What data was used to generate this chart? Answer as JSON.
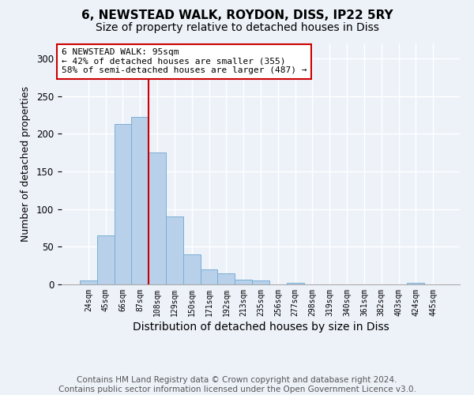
{
  "title": "6, NEWSTEAD WALK, ROYDON, DISS, IP22 5RY",
  "subtitle": "Size of property relative to detached houses in Diss",
  "xlabel": "Distribution of detached houses by size in Diss",
  "ylabel": "Number of detached properties",
  "bar_labels": [
    "24sqm",
    "45sqm",
    "66sqm",
    "87sqm",
    "108sqm",
    "129sqm",
    "150sqm",
    "171sqm",
    "192sqm",
    "213sqm",
    "235sqm",
    "256sqm",
    "277sqm",
    "298sqm",
    "319sqm",
    "340sqm",
    "361sqm",
    "382sqm",
    "403sqm",
    "424sqm",
    "445sqm"
  ],
  "bar_values": [
    5,
    65,
    213,
    222,
    175,
    90,
    40,
    20,
    15,
    6,
    5,
    0,
    2,
    0,
    0,
    0,
    0,
    0,
    0,
    2,
    0
  ],
  "bar_color": "#b8d0ea",
  "bar_edge_color": "#7aafd4",
  "vline_x": 3.5,
  "vline_color": "#cc0000",
  "annotation_text": "6 NEWSTEAD WALK: 95sqm\n← 42% of detached houses are smaller (355)\n58% of semi-detached houses are larger (487) →",
  "annotation_box_color": "#ffffff",
  "annotation_box_edge": "#cc0000",
  "ylim": [
    0,
    320
  ],
  "yticks": [
    0,
    50,
    100,
    150,
    200,
    250,
    300
  ],
  "footer_line1": "Contains HM Land Registry data © Crown copyright and database right 2024.",
  "footer_line2": "Contains public sector information licensed under the Open Government Licence v3.0.",
  "title_fontsize": 11,
  "subtitle_fontsize": 10,
  "xlabel_fontsize": 10,
  "ylabel_fontsize": 9,
  "footer_fontsize": 7.5,
  "bg_color": "#edf2f9"
}
